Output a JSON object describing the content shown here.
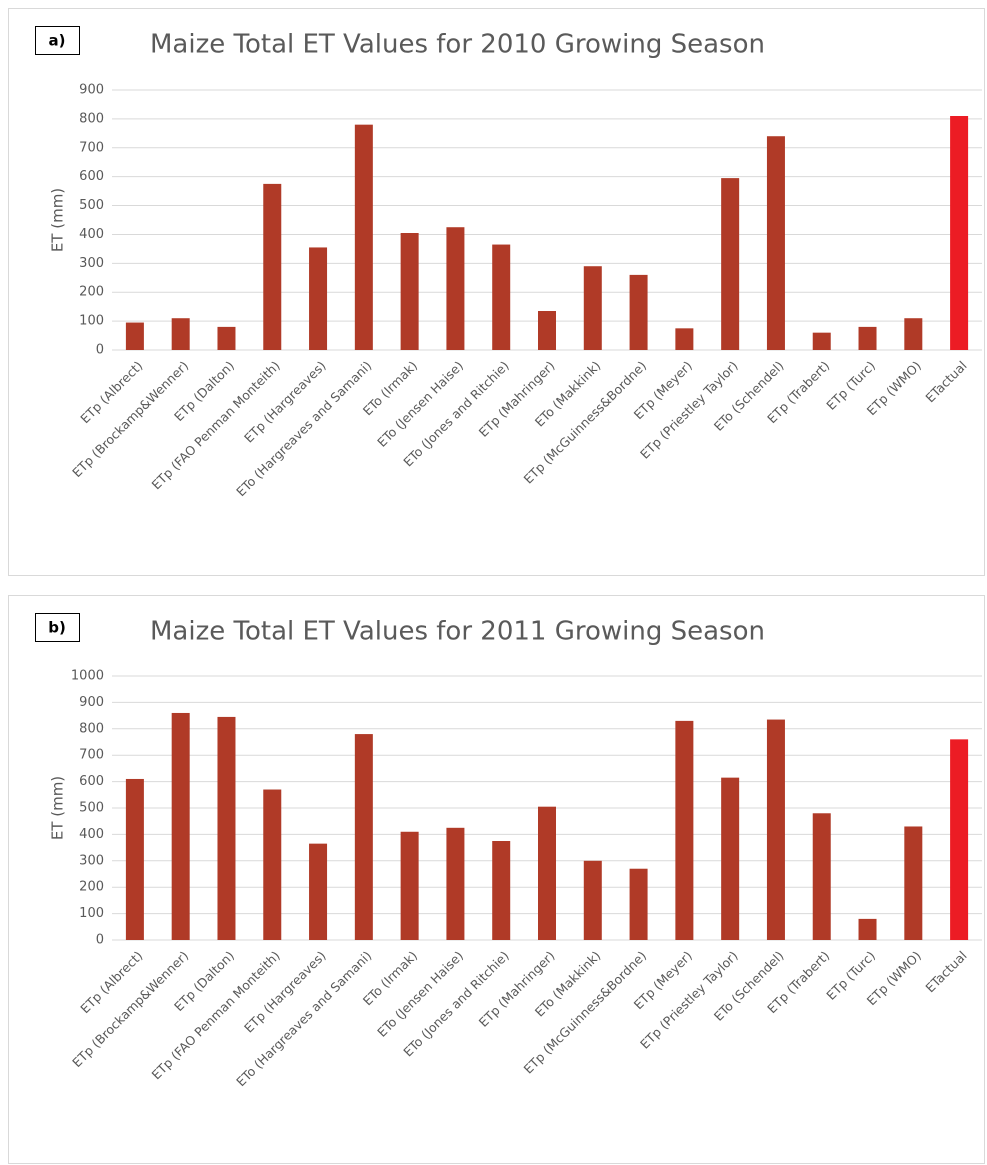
{
  "chart_data": [
    {
      "type": "bar",
      "panel_label": "a)",
      "title": "Maize Total ET Values for 2010 Growing Season",
      "y_label": "ET (mm)",
      "categories": [
        "ETp (Albrect)",
        "ETp (Brockamp&Wenner)",
        "ETp (Dalton)",
        "ETp (FAO Penman Monteith)",
        "ETp (Hargreaves)",
        "ETo (Hargreaves and Samani)",
        "ETo (Irmak)",
        "ETo (Jensen Haise)",
        "ETo (Jones and Ritchie)",
        "ETp (Mahringer)",
        "ETo (Makkink)",
        "ETp (McGuinness&Bordne)",
        "ETp (Meyer)",
        "ETp (Priestley Taylor)",
        "ETo (Schendel)",
        "ETp (Trabert)",
        "ETp (Turc)",
        "ETp (WMO)",
        "ETactual"
      ],
      "values": [
        95,
        110,
        80,
        575,
        355,
        780,
        405,
        425,
        365,
        135,
        290,
        260,
        75,
        595,
        740,
        60,
        80,
        110,
        810
      ],
      "colors": [
        "#b03a27",
        "#b03a27",
        "#b03a27",
        "#b03a27",
        "#b03a27",
        "#b03a27",
        "#b03a27",
        "#b03a27",
        "#b03a27",
        "#b03a27",
        "#b03a27",
        "#b03a27",
        "#b03a27",
        "#b03a27",
        "#b03a27",
        "#b03a27",
        "#b03a27",
        "#b03a27",
        "#ec1c24"
      ],
      "ylim": [
        0,
        900
      ],
      "yticks": [
        0,
        100,
        200,
        300,
        400,
        500,
        600,
        700,
        800,
        900
      ],
      "grid": true
    },
    {
      "type": "bar",
      "panel_label": "b)",
      "title": "Maize Total ET Values for 2011 Growing Season",
      "y_label": "ET (mm)",
      "categories": [
        "ETp (Albrect)",
        "ETp (Brockamp&Wenner)",
        "ETp (Dalton)",
        "ETp (FAO Penman Monteith)",
        "ETp (Hargreaves)",
        "ETo (Hargreaves and Samani)",
        "ETo (Irmak)",
        "ETo (Jensen Haise)",
        "ETo (Jones and Ritchie)",
        "ETp (Mahringer)",
        "ETo (Makkink)",
        "ETp (McGuinness&Bordne)",
        "ETp (Meyer)",
        "ETp (Priestley Taylor)",
        "ETo (Schendel)",
        "ETp (Trabert)",
        "ETp (Turc)",
        "ETp (WMO)",
        "ETactual"
      ],
      "values": [
        610,
        860,
        845,
        570,
        365,
        780,
        410,
        425,
        375,
        505,
        300,
        270,
        830,
        615,
        835,
        480,
        80,
        430,
        760
      ],
      "colors": [
        "#b03a27",
        "#b03a27",
        "#b03a27",
        "#b03a27",
        "#b03a27",
        "#b03a27",
        "#b03a27",
        "#b03a27",
        "#b03a27",
        "#b03a27",
        "#b03a27",
        "#b03a27",
        "#b03a27",
        "#b03a27",
        "#b03a27",
        "#b03a27",
        "#b03a27",
        "#b03a27",
        "#ec1c24"
      ],
      "ylim": [
        0,
        1000
      ],
      "yticks": [
        0,
        100,
        200,
        300,
        400,
        500,
        600,
        700,
        800,
        900,
        1000
      ],
      "grid": true
    }
  ]
}
